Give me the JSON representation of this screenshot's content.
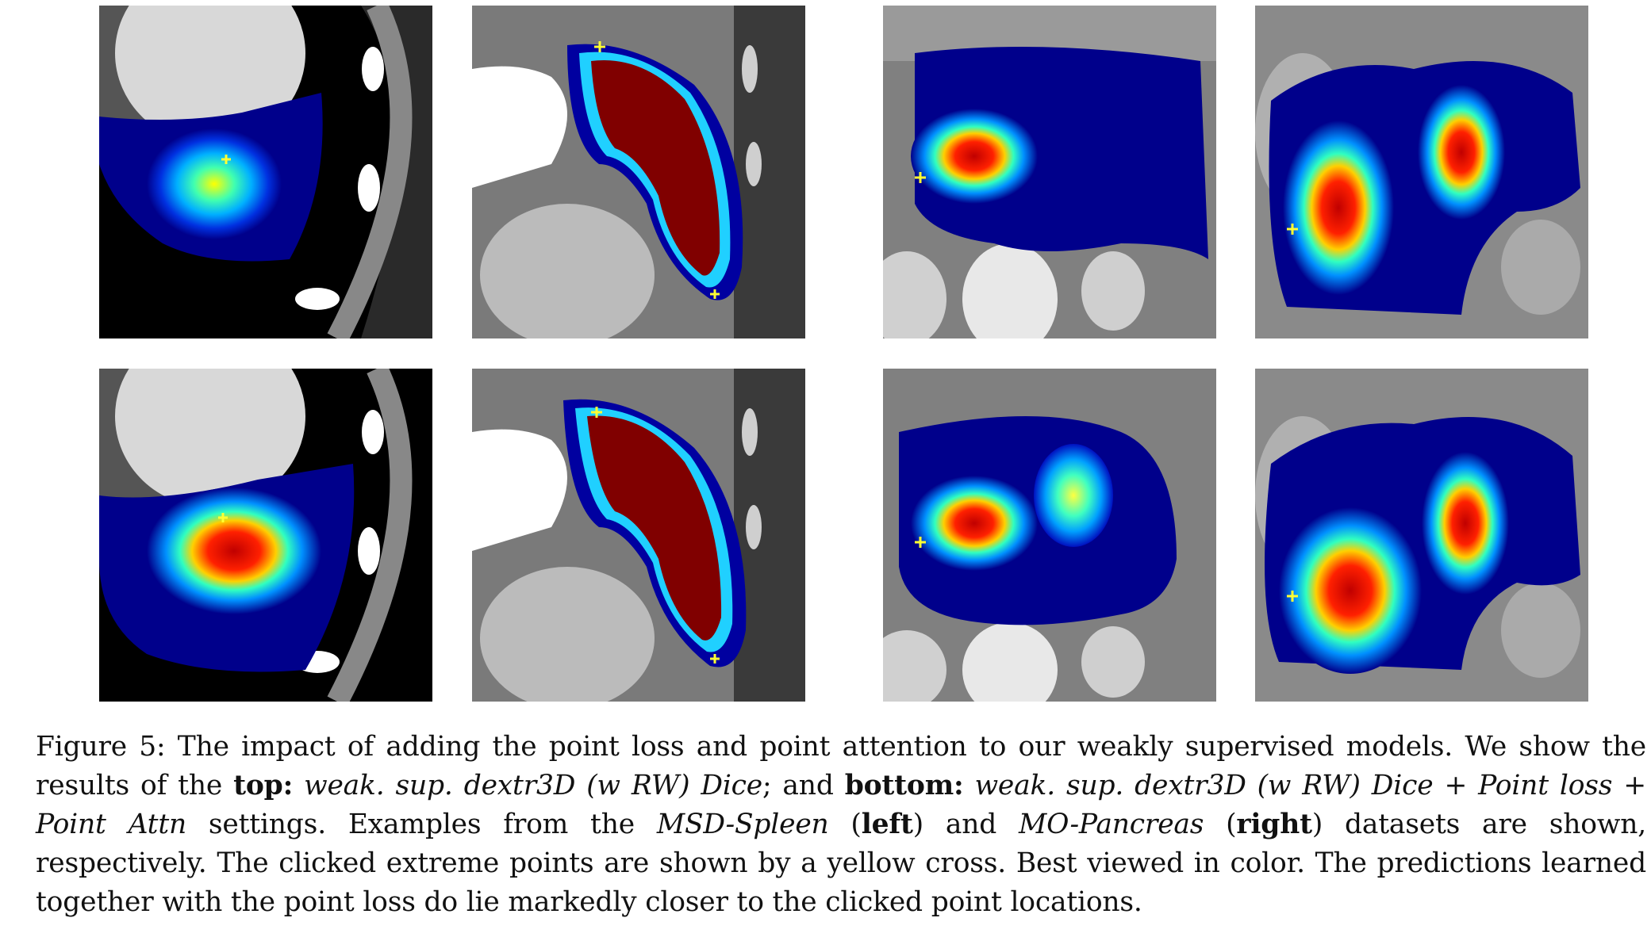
{
  "figure": {
    "panels": [
      {
        "row": "top",
        "col": 1,
        "subject": "MSD-Spleen axial",
        "marker": "yellow cross"
      },
      {
        "row": "top",
        "col": 2,
        "subject": "MSD-Spleen sagittal",
        "marker": "yellow cross"
      },
      {
        "row": "top",
        "col": 3,
        "subject": "MO-Pancreas axial",
        "marker": "yellow cross"
      },
      {
        "row": "top",
        "col": 4,
        "subject": "MO-Pancreas coronal",
        "marker": "yellow cross"
      },
      {
        "row": "bottom",
        "col": 1,
        "subject": "MSD-Spleen axial",
        "marker": "yellow cross"
      },
      {
        "row": "bottom",
        "col": 2,
        "subject": "MSD-Spleen sagittal",
        "marker": "yellow cross"
      },
      {
        "row": "bottom",
        "col": 3,
        "subject": "MO-Pancreas axial",
        "marker": "yellow cross"
      },
      {
        "row": "bottom",
        "col": 4,
        "subject": "MO-Pancreas coronal",
        "marker": "yellow cross"
      }
    ],
    "colors": {
      "heat_low": "#00008b",
      "heat_mid": "#00c8ff",
      "heat_high": "#ffff00",
      "heat_peak": "#800000",
      "marker": "#ffff33"
    }
  },
  "caption": {
    "part1": "Figure 5: The impact of adding the point loss and point attention to our weakly supervised models. We show the results of the ",
    "top_label": "top:",
    "top_setting": "weak. sup. dextr3D (w RW) Dice",
    "and": "; and ",
    "bottom_label": "bottom:",
    "bottom_setting": "weak. sup. dextr3D (w RW) Dice + Point loss + Point Attn",
    "part2": " settings. Examples from the ",
    "dataset1": "MSD-Spleen",
    "paren1_open": " (",
    "left": "left",
    "paren1_close": ") and ",
    "dataset2": "MO-Pancreas",
    "paren2_open": " (",
    "right": "right",
    "part3": ") datasets are shown, respectively. The clicked extreme points are shown by a yellow cross. Best viewed in color. The predictions learned together with the point loss do lie markedly closer to the clicked point locations."
  }
}
